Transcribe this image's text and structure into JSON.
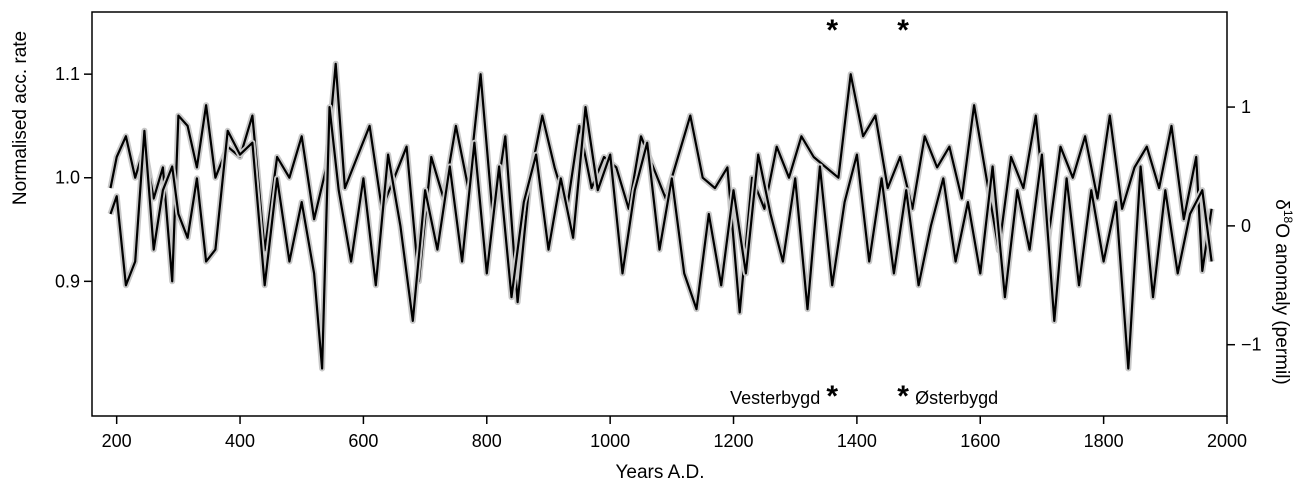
{
  "chart_data": {
    "type": "line",
    "xlabel": "Years A.D.",
    "xlim": [
      160,
      2000
    ],
    "x_ticks": [
      200,
      400,
      600,
      800,
      1000,
      1200,
      1400,
      1600,
      1800,
      2000
    ],
    "x_tick_labels": [
      "200",
      "400",
      "600",
      "800",
      "1000",
      "1200",
      "1400",
      "1600",
      "1800",
      "2000"
    ],
    "left_axis": {
      "label": "Normalised acc. rate",
      "ylim": [
        0.77,
        1.16
      ],
      "ticks": [
        0.9,
        1.0,
        1.1
      ],
      "tick_labels": [
        "0.9",
        "1.0",
        "1.1"
      ]
    },
    "right_axis": {
      "label_prefix": "δ",
      "label_superscript": "18",
      "label_suffix": "O anomaly (permil)",
      "ylim": [
        -1.6,
        1.8
      ],
      "ticks": [
        1,
        0,
        -1
      ],
      "tick_labels": [
        "1",
        "0",
        "−1"
      ]
    },
    "series": [
      {
        "axis": "left",
        "color_smoothed": "#000000",
        "color_raw": "#c8c8c8",
        "x": [
          190,
          200,
          215,
          230,
          245,
          260,
          275,
          290,
          300,
          315,
          330,
          345,
          360,
          380,
          400,
          420,
          440,
          460,
          480,
          500,
          520,
          540,
          555,
          570,
          590,
          610,
          630,
          650,
          670,
          690,
          710,
          730,
          750,
          770,
          790,
          810,
          830,
          850,
          870,
          890,
          910,
          930,
          950,
          970,
          990,
          1010,
          1030,
          1050,
          1070,
          1090,
          1110,
          1130,
          1150,
          1170,
          1190,
          1210,
          1230,
          1250,
          1270,
          1290,
          1310,
          1330,
          1350,
          1370,
          1390,
          1410,
          1430,
          1450,
          1470,
          1490,
          1510,
          1530,
          1550,
          1570,
          1590,
          1610,
          1630,
          1650,
          1670,
          1690,
          1710,
          1730,
          1750,
          1770,
          1790,
          1810,
          1830,
          1850,
          1870,
          1890,
          1910,
          1930,
          1950,
          1960,
          1975
        ],
        "y": [
          0.99,
          1.02,
          1.04,
          1.0,
          1.03,
          0.98,
          1.01,
          0.9,
          1.06,
          1.05,
          1.01,
          1.07,
          1.0,
          1.03,
          1.02,
          1.06,
          0.93,
          1.02,
          1.0,
          1.04,
          0.96,
          1.01,
          1.11,
          0.99,
          1.02,
          1.05,
          0.97,
          1.0,
          1.03,
          0.9,
          1.02,
          0.98,
          1.05,
          0.99,
          1.1,
          0.96,
          1.04,
          0.88,
          1.0,
          1.06,
          1.01,
          0.97,
          1.05,
          0.99,
          1.02,
          1.01,
          0.97,
          1.04,
          1.01,
          0.98,
          1.02,
          1.06,
          1.0,
          0.99,
          1.01,
          0.87,
          1.0,
          0.97,
          1.03,
          1.0,
          1.04,
          1.02,
          1.01,
          1.0,
          1.1,
          1.04,
          1.06,
          0.99,
          1.02,
          0.97,
          1.04,
          1.01,
          1.03,
          0.98,
          1.07,
          1.0,
          0.93,
          1.02,
          0.99,
          1.06,
          0.94,
          1.03,
          1.0,
          1.04,
          0.98,
          1.06,
          0.97,
          1.01,
          1.03,
          0.99,
          1.05,
          0.96,
          1.02,
          0.91,
          0.97
        ]
      },
      {
        "axis": "right",
        "color_smoothed": "#000000",
        "color_raw": "#c8c8c8",
        "x": [
          190,
          200,
          215,
          230,
          245,
          260,
          275,
          290,
          300,
          315,
          330,
          345,
          360,
          380,
          400,
          420,
          440,
          460,
          480,
          500,
          520,
          533,
          545,
          560,
          580,
          600,
          620,
          640,
          660,
          680,
          700,
          720,
          740,
          760,
          780,
          800,
          820,
          840,
          860,
          880,
          900,
          920,
          940,
          960,
          980,
          1000,
          1020,
          1040,
          1060,
          1080,
          1100,
          1120,
          1140,
          1160,
          1180,
          1200,
          1220,
          1240,
          1260,
          1280,
          1300,
          1320,
          1340,
          1360,
          1380,
          1400,
          1420,
          1440,
          1460,
          1480,
          1500,
          1520,
          1540,
          1560,
          1580,
          1600,
          1620,
          1640,
          1660,
          1680,
          1700,
          1720,
          1740,
          1760,
          1780,
          1800,
          1820,
          1840,
          1860,
          1880,
          1900,
          1920,
          1940,
          1960,
          1975
        ],
        "y": [
          0.1,
          0.25,
          -0.5,
          -0.3,
          0.8,
          -0.2,
          0.3,
          0.5,
          0.1,
          -0.1,
          0.4,
          -0.3,
          -0.2,
          0.8,
          0.6,
          0.7,
          -0.5,
          0.4,
          -0.3,
          0.2,
          -0.4,
          -1.2,
          1.0,
          0.3,
          -0.3,
          0.4,
          -0.5,
          0.6,
          0.0,
          -0.8,
          0.3,
          -0.2,
          0.5,
          -0.3,
          0.7,
          -0.4,
          0.5,
          -0.6,
          0.2,
          0.6,
          -0.2,
          0.4,
          -0.1,
          1.0,
          0.3,
          0.6,
          -0.4,
          0.3,
          0.7,
          -0.2,
          0.4,
          -0.4,
          -0.7,
          0.1,
          -0.5,
          0.3,
          -0.4,
          0.6,
          0.1,
          -0.3,
          0.4,
          -0.7,
          0.5,
          -0.5,
          0.2,
          0.6,
          -0.3,
          0.4,
          -0.4,
          0.3,
          -0.5,
          0.0,
          0.4,
          -0.3,
          0.2,
          -0.4,
          0.5,
          -0.6,
          0.3,
          -0.2,
          0.6,
          -0.8,
          0.4,
          -0.5,
          0.3,
          -0.3,
          0.2,
          -1.2,
          0.5,
          -0.6,
          0.3,
          -0.4,
          0.1,
          0.3,
          -0.3
        ]
      }
    ],
    "annotations": [
      {
        "type": "asterisk",
        "text": "*",
        "x": 1360,
        "position": "top"
      },
      {
        "type": "asterisk",
        "text": "*",
        "x": 1475,
        "position": "top"
      },
      {
        "type": "asterisk",
        "text": "*",
        "x": 1360,
        "position": "bottom",
        "label": "Vesterbygd",
        "label_side": "left"
      },
      {
        "type": "asterisk",
        "text": "*",
        "x": 1475,
        "position": "bottom",
        "label": "Østerbygd",
        "label_side": "right"
      }
    ],
    "grid": false,
    "legend": "none"
  }
}
